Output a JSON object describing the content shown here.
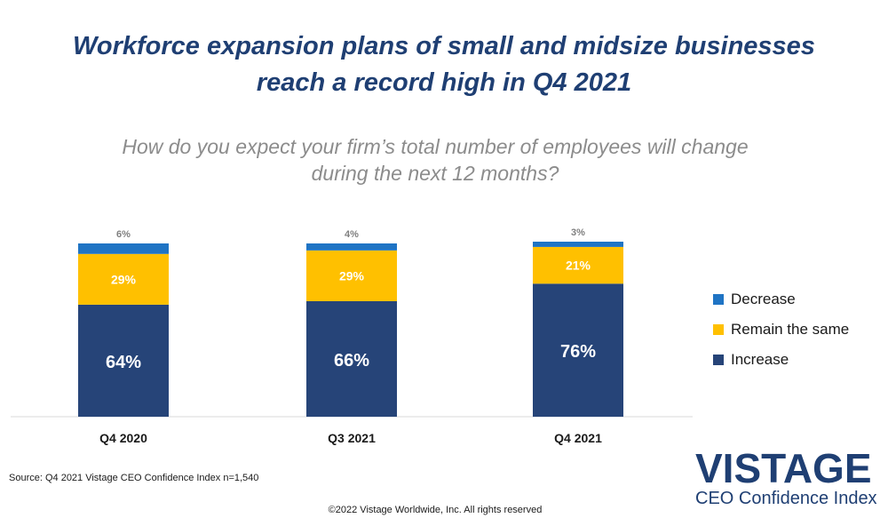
{
  "header": {
    "title_line1": "Workforce expansion plans of small and midsize businesses",
    "title_line2": "reach a record high in Q4 2021",
    "subtitle_line1": "How do you expect your firm’s total number of employees will change",
    "subtitle_line2": "during the next 12 months?"
  },
  "colors": {
    "increase": "#264478",
    "remain": "#ffc000",
    "decrease": "#1f74c4",
    "title": "#1f3f73"
  },
  "chart_data": {
    "type": "bar",
    "stacked": true,
    "categories": [
      "Q4 2020",
      "Q3 2021",
      "Q4 2021"
    ],
    "series": [
      {
        "name": "Increase",
        "values": [
          64,
          66,
          76
        ],
        "labels": [
          "64%",
          "66%",
          "76%"
        ]
      },
      {
        "name": "Remain the same",
        "values": [
          29,
          29,
          21
        ],
        "labels": [
          "29%",
          "29%",
          "21%"
        ]
      },
      {
        "name": "Decrease",
        "values": [
          6,
          4,
          3
        ],
        "labels": [
          "6%",
          "4%",
          "3%"
        ]
      }
    ],
    "legend_position": "right",
    "grid": false
  },
  "footer": {
    "source": "Source: Q4 2021 Vistage CEO Confidence Index n=1,540",
    "copyright": "©2022 Vistage Worldwide, Inc. All rights reserved"
  },
  "logo": {
    "main": "VISTAGE",
    "sub": "CEO Confidence Index"
  }
}
